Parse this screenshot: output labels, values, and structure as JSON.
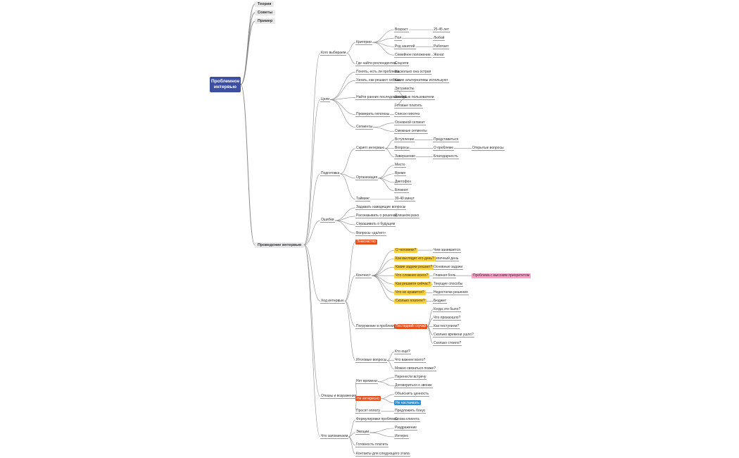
{
  "title": "Проблемное интервью",
  "nodes": [
    {
      "label": "Теория"
    },
    {
      "label": "Советы"
    },
    {
      "label": "Пример"
    },
    {
      "label": "Проведение интервью",
      "children": [
        {
          "label": "Кого выбираем",
          "children": [
            {
              "label": "Критерии",
              "children": [
                {
                  "label": "Возраст",
                  "children": [
                    {
                      "label": "25-45 лет"
                    }
                  ]
                },
                {
                  "label": "Пол",
                  "children": [
                    {
                      "label": "Любой"
                    }
                  ]
                },
                {
                  "label": "Род занятий",
                  "children": [
                    {
                      "label": "Работает"
                    }
                  ]
                },
                {
                  "label": "Семейное положение",
                  "children": [
                    {
                      "label": "Женат"
                    }
                  ]
                }
              ]
            },
            {
              "label": "Где найти респондентов",
              "children": [
                {
                  "label": "Соцсети"
                }
              ]
            }
          ]
        },
        {
          "label": "Цели",
          "children": [
            {
              "label": "Понять, есть ли проблема",
              "children": [
                {
                  "label": "Насколько она острая"
                }
              ]
            },
            {
              "label": "Узнать, как решают сейчас",
              "children": [
                {
                  "label": "Какие альтернативы используют"
                }
              ]
            },
            {
              "label": "Найти ранних последователей",
              "children": [
                {
                  "label": "Энтузиасты"
                },
                {
                  "label": "Активные пользователи"
                },
                {
                  "label": "Готовые платить"
                }
              ]
            },
            {
              "label": "Проверить гипотезы",
              "children": [
                {
                  "label": "Список гипотез"
                }
              ]
            },
            {
              "label": "Сегменты",
              "children": [
                {
                  "label": "Основной сегмент"
                },
                {
                  "label": "Смежные сегменты"
                }
              ]
            }
          ]
        },
        {
          "label": "Подготовка",
          "children": [
            {
              "label": "Скрипт интервью",
              "children": [
                {
                  "label": "Вступление",
                  "children": [
                    {
                      "label": "Представиться"
                    }
                  ]
                },
                {
                  "label": "Вопросы",
                  "children": [
                    {
                      "label": "О проблеме",
                      "children": [
                        {
                          "label": "Открытые вопросы"
                        }
                      ]
                    }
                  ]
                },
                {
                  "label": "Завершение",
                  "children": [
                    {
                      "label": "Благодарность"
                    }
                  ]
                }
              ]
            },
            {
              "label": "Организация",
              "children": [
                {
                  "label": "Место"
                },
                {
                  "label": "Время"
                },
                {
                  "label": "Диктофон"
                },
                {
                  "label": "Блокнот"
                }
              ]
            },
            {
              "label": "Тайминг",
              "children": [
                {
                  "label": "30-40 минут"
                }
              ]
            }
          ]
        },
        {
          "label": "Ошибки",
          "children": [
            {
              "label": "Задавать наводящие вопросы"
            },
            {
              "label": "Рассказывать о решении",
              "children": [
                {
                  "label": "Слишком рано"
                }
              ]
            },
            {
              "label": "Спрашивать о будущем"
            },
            {
              "label": "Вопросы «да/нет»"
            }
          ]
        },
        {
          "label": "Ход интервью",
          "children": [
            {
              "label": "Знакомство",
              "color": "#e8501e"
            },
            {
              "label": "Контекст",
              "children": [
                {
                  "label": "О человеке?",
                  "color": "#f7d046",
                  "children": [
                    {
                      "label": "Чем занимается"
                    }
                  ]
                },
                {
                  "label": "Как выглядит его день?",
                  "color": "#f7d046",
                  "children": [
                    {
                      "label": "Типичный день"
                    }
                  ]
                },
                {
                  "label": "Какие задачи решает?",
                  "color": "#f7d046",
                  "children": [
                    {
                      "label": "Основные задачи"
                    }
                  ]
                },
                {
                  "label": "Что сложнее всего?",
                  "color": "#f7d046",
                  "children": [
                    {
                      "label": "Главная боль",
                      "children": [
                        {
                          "label": "Проблема с высоким приоритетом",
                          "color": "#f5a3c7"
                        }
                      ]
                    }
                  ]
                },
                {
                  "label": "Как решаете сейчас?",
                  "color": "#f7d046",
                  "children": [
                    {
                      "label": "Текущие способы"
                    }
                  ]
                },
                {
                  "label": "Что не нравится?",
                  "color": "#f7d046",
                  "children": [
                    {
                      "label": "Недостатки решения"
                    }
                  ]
                },
                {
                  "label": "Сколько платите?",
                  "color": "#f7d046",
                  "children": [
                    {
                      "label": "Бюджет"
                    }
                  ]
                }
              ]
            },
            {
              "label": "Погружение в проблему",
              "children": [
                {
                  "label": "Последний случай",
                  "color": "#e8501e",
                  "children": [
                    {
                      "label": "Когда это было?"
                    },
                    {
                      "label": "Что произошло?"
                    },
                    {
                      "label": "Как поступили?"
                    },
                    {
                      "label": "Сколько времени ушло?"
                    },
                    {
                      "label": "Сколько стоило?"
                    }
                  ]
                }
              ]
            },
            {
              "label": "Итоговые вопросы",
              "children": [
                {
                  "label": "Кто ещё?"
                },
                {
                  "label": "Что важнее всего?"
                },
                {
                  "label": "Можно связаться позже?"
                }
              ]
            }
          ]
        },
        {
          "label": "Отказы и возражения",
          "children": [
            {
              "label": "Нет времени",
              "children": [
                {
                  "label": "Перенести встречу"
                },
                {
                  "label": "Договориться о звонке"
                }
              ]
            },
            {
              "label": "Не интересно",
              "color": "#e8501e",
              "children": [
                {
                  "label": "Объяснить ценность"
                },
                {
                  "label": "Не настаивать",
                  "color": "#2a8fd6"
                }
              ]
            },
            {
              "label": "Просят оплату",
              "children": [
                {
                  "label": "Предложить бонус"
                }
              ]
            }
          ]
        },
        {
          "label": "Что запоминаем",
          "children": [
            {
              "label": "Формулировки проблемы",
              "children": [
                {
                  "label": "Слова клиента"
                }
              ]
            },
            {
              "label": "Эмоции",
              "children": [
                {
                  "label": "Раздражение"
                },
                {
                  "label": "Интерес"
                }
              ]
            },
            {
              "label": "Готовность платить"
            },
            {
              "label": "Контакты для следующего этапа"
            }
          ]
        }
      ]
    }
  ]
}
